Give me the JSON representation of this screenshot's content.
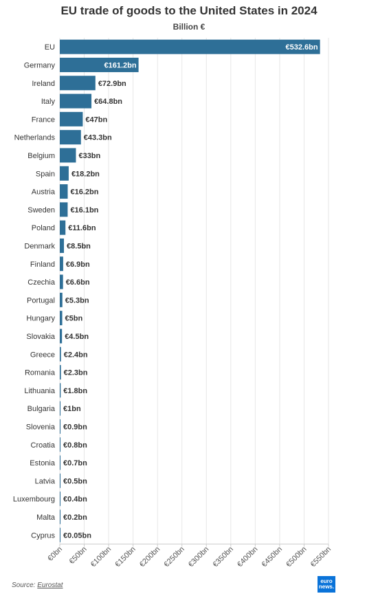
{
  "chart_data": {
    "type": "bar",
    "orientation": "horizontal",
    "title": "EU trade of goods to the United States in 2024",
    "subtitle": "Billion €",
    "categories": [
      "EU",
      "Germany",
      "Ireland",
      "Italy",
      "France",
      "Netherlands",
      "Belgium",
      "Spain",
      "Austria",
      "Sweden",
      "Poland",
      "Denmark",
      "Finland",
      "Czechia",
      "Portugal",
      "Hungary",
      "Slovakia",
      "Greece",
      "Romania",
      "Lithuania",
      "Bulgaria",
      "Slovenia",
      "Croatia",
      "Estonia",
      "Latvia",
      "Luxembourg",
      "Malta",
      "Cyprus"
    ],
    "values": [
      532.6,
      161.2,
      72.9,
      64.8,
      47,
      43.3,
      33,
      18.2,
      16.2,
      16.1,
      11.6,
      8.5,
      6.9,
      6.6,
      5.3,
      5,
      4.5,
      2.4,
      2.3,
      1.8,
      1,
      0.9,
      0.8,
      0.7,
      0.5,
      0.4,
      0.2,
      0.05
    ],
    "data_labels": [
      "€532.6bn",
      "€161.2bn",
      "€72.9bn",
      "€64.8bn",
      "€47bn",
      "€43.3bn",
      "€33bn",
      "€18.2bn",
      "€16.2bn",
      "€16.1bn",
      "€11.6bn",
      "€8.5bn",
      "€6.9bn",
      "€6.6bn",
      "€5.3bn",
      "€5bn",
      "€4.5bn",
      "€2.4bn",
      "€2.3bn",
      "€1.8bn",
      "€1bn",
      "€0.9bn",
      "€0.8bn",
      "€0.7bn",
      "€0.5bn",
      "€0.4bn",
      "€0.2bn",
      "€0.05bn"
    ],
    "x_ticks": [
      0,
      50,
      100,
      150,
      200,
      250,
      300,
      350,
      400,
      450,
      500,
      550
    ],
    "x_tick_labels": [
      "€0bn",
      "€50bn",
      "€100bn",
      "€150bn",
      "€200bn",
      "€250bn",
      "€300bn",
      "€350bn",
      "€400bn",
      "€450bn",
      "€500bn",
      "€550bn"
    ],
    "xlim": [
      0,
      550
    ],
    "grid": true,
    "bar_color": "#2e6f97"
  },
  "source": {
    "label": "Source:",
    "name": "Eurostat"
  },
  "logo": {
    "line1": "euro",
    "line2": "news."
  }
}
